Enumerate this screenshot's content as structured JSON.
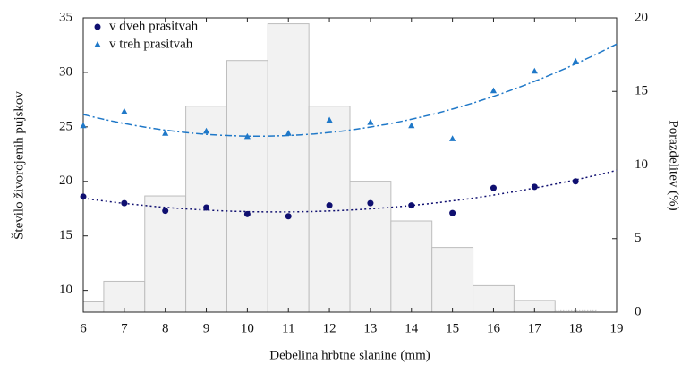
{
  "chart_data": {
    "type": "histogram",
    "xlabel": "Debelina hrbtne slanine (mm)",
    "ylabel": "Število živorojenih pujskov",
    "y2label": "Porazdelitev (%)",
    "bins": [
      5.5,
      6.5,
      7.5,
      8.5,
      9.5,
      10.5,
      11.5,
      12.5,
      13.5,
      14.5,
      15.5,
      16.5,
      17.5,
      18.5
    ],
    "counts": [
      0.7,
      2.1,
      7.9,
      14.0,
      17.1,
      19.6,
      14.0,
      8.9,
      6.2,
      4.4,
      1.8,
      0.8,
      0.1
    ],
    "color": "#f2f2f2",
    "edgecolor": "#bdbdbd",
    "axis": "y2",
    "xlim": [
      6,
      19
    ],
    "xticks": [
      6,
      7,
      8,
      9,
      10,
      11,
      12,
      13,
      14,
      15,
      16,
      17,
      18,
      19
    ],
    "ylim": [
      8,
      35
    ],
    "yticks": [
      10,
      15,
      20,
      25,
      30,
      35
    ],
    "y2lim": [
      0,
      20
    ],
    "y2ticks": [
      0,
      5,
      10,
      15,
      20
    ],
    "legend": "upper left",
    "x": [
      6,
      7,
      8,
      9,
      10,
      11,
      12,
      13,
      14,
      15,
      16,
      17,
      18
    ],
    "series": [
      {
        "name": "v dveh prasitvah",
        "type": "scatter",
        "marker": "circle",
        "color": "#0f0f70",
        "trendline": "quadratic",
        "linestyle": "dotted",
        "values": [
          18.6,
          18.0,
          17.3,
          17.6,
          17.0,
          16.8,
          17.8,
          18.0,
          17.8,
          17.1,
          19.4,
          19.5,
          20.0
        ]
      },
      {
        "name": "v treh prasitvah",
        "type": "scatter",
        "marker": "triangle",
        "color": "#1f78c8",
        "trendline": "quadratic",
        "linestyle": "dashdot",
        "values": [
          25.1,
          26.4,
          24.4,
          24.6,
          24.1,
          24.4,
          25.6,
          25.4,
          25.1,
          23.9,
          28.3,
          30.1,
          31.0
        ]
      }
    ]
  }
}
